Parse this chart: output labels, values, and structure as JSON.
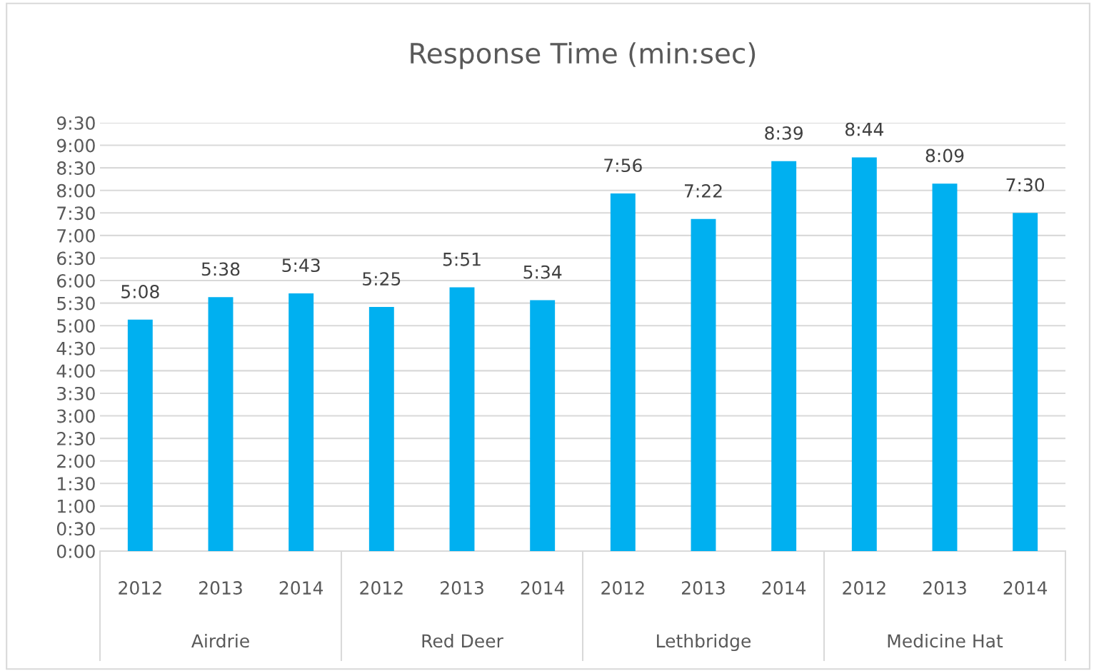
{
  "chart_data": {
    "type": "bar",
    "title": "Response Time (min:sec)",
    "categories": [
      "2012",
      "2013",
      "2014",
      "2012",
      "2013",
      "2014",
      "2012",
      "2013",
      "2014",
      "2012",
      "2013",
      "2014"
    ],
    "values": [
      308,
      338,
      343,
      325,
      351,
      334,
      476,
      442,
      519,
      524,
      489,
      450
    ],
    "value_labels": [
      "5:08",
      "5:38",
      "5:43",
      "5:25",
      "5:51",
      "5:34",
      "7:56",
      "7:22",
      "8:39",
      "8:44",
      "8:09",
      "7:30"
    ],
    "color": "#00b0f0",
    "annotations": [
      "Airdrie",
      "Red Deer",
      "Lethbridge",
      "Medicine Hat"
    ],
    "ylim": [
      0,
      570
    ],
    "yticks": [
      {
        "value": 0,
        "label": "0:00"
      },
      {
        "value": 30,
        "label": "0:30"
      },
      {
        "value": 60,
        "label": "1:00"
      },
      {
        "value": 90,
        "label": "1:30"
      },
      {
        "value": 120,
        "label": "2:00"
      },
      {
        "value": 150,
        "label": "2:30"
      },
      {
        "value": 180,
        "label": "3:00"
      },
      {
        "value": 210,
        "label": "3:30"
      },
      {
        "value": 240,
        "label": "4:00"
      },
      {
        "value": 270,
        "label": "4:30"
      },
      {
        "value": 300,
        "label": "5:00"
      },
      {
        "value": 330,
        "label": "5:30"
      },
      {
        "value": 360,
        "label": "6:00"
      },
      {
        "value": 390,
        "label": "6:30"
      },
      {
        "value": 420,
        "label": "7:00"
      },
      {
        "value": 450,
        "label": "7:30"
      },
      {
        "value": 480,
        "label": "8:00"
      },
      {
        "value": 510,
        "label": "8:30"
      },
      {
        "value": 540,
        "label": "9:00"
      },
      {
        "value": 570,
        "label": "9:30"
      }
    ],
    "grid": "y"
  }
}
